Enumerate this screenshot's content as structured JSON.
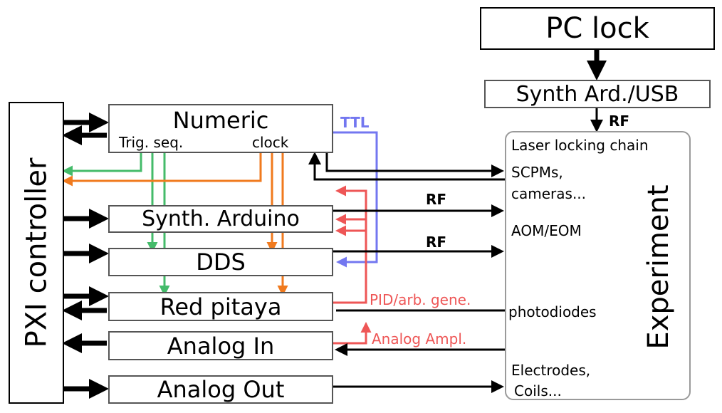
{
  "blocks": {
    "pc_lock": "PC lock",
    "synth_usb": "Synth Ard./USB",
    "pxi": "PXI controller",
    "numeric": "Numeric",
    "synth_arduino": "Synth. Arduino",
    "dds": "DDS",
    "red_pitaya": "Red pitaya",
    "analog_in": "Analog In",
    "analog_out": "Analog Out",
    "experiment": "Experiment"
  },
  "ports": {
    "trig_seq": "Trig. seq.",
    "clock": "clock"
  },
  "signals": {
    "ttl": "TTL",
    "rf_top": "RF",
    "rf_1": "RF",
    "rf_2": "RF",
    "pid": "PID/arb. gene.",
    "analog_ampl": "Analog Ampl."
  },
  "experiment_items": {
    "laser_chain": "Laser locking chain",
    "scpms": "SCPMs,",
    "cameras": "cameras...",
    "aom": "AOM/EOM",
    "photodiodes": "photodiodes",
    "electrodes": "Electrodes,",
    "coils": "Coils..."
  },
  "colors": {
    "trig": "#44bb6a",
    "clock": "#f07a1e",
    "ttl": "#7377f0",
    "analog": "#ee5656",
    "main": "#000000",
    "border": "#555555"
  }
}
